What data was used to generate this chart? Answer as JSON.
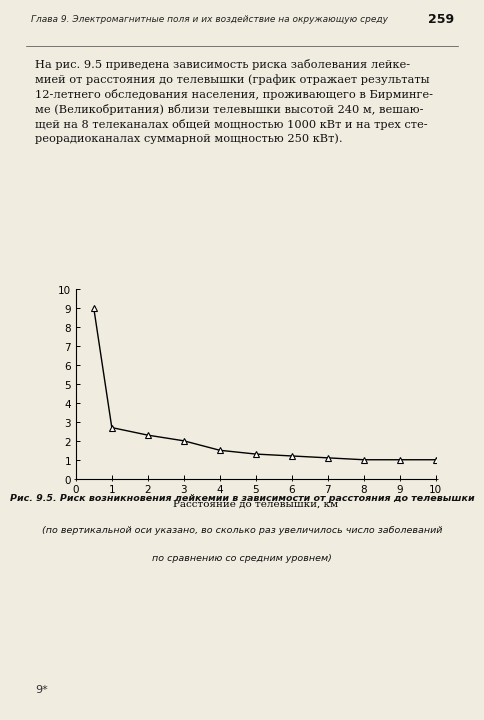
{
  "x_data": [
    0.5,
    1,
    2,
    3,
    4,
    5,
    6,
    7,
    8,
    9,
    10
  ],
  "y_data": [
    9.0,
    2.7,
    2.3,
    2.0,
    1.5,
    1.3,
    1.2,
    1.1,
    1.0,
    1.0,
    1.0
  ],
  "xlabel": "Расстояние до телевышки, км",
  "caption_line1": "Рис. 9.5. Риск возникновения лейкемии в зависимости от расстояния до телевышки",
  "caption_line2": "(по вертикальной оси указано, во сколько раз увеличилось число заболеваний",
  "caption_line3": "по сравнению со средним уровнем)",
  "header_line1": "Глава 9. Электромагнитные поля и их воздействие на окружающую среду",
  "header_page": "259",
  "text_paragraph": "На рис. 9.5 приведена зависимость риска заболевания лейке-\nмией от расстояния до телевышки (график отражает результаты\n12-летнего обследования населения, проживающего в Бирминге-\nме (Великобритания) вблизи телевышки высотой 240 м, вешаю-\nщей на 8 телеканалах общей мощностью 1000 кВт и на трех сте-\nреорадиоканалах суммарной мощностью 250 кВт).",
  "ylim": [
    0,
    10
  ],
  "xlim": [
    0,
    10
  ],
  "yticks": [
    0,
    1,
    2,
    3,
    4,
    5,
    6,
    7,
    8,
    9,
    10
  ],
  "xticks": [
    0,
    1,
    2,
    3,
    4,
    5,
    6,
    7,
    8,
    9,
    10
  ],
  "line_color": "#000000",
  "marker": "^",
  "marker_facecolor": "white",
  "marker_edgecolor": "#000000",
  "background_color": "#f0ece0",
  "page_num": "9*"
}
